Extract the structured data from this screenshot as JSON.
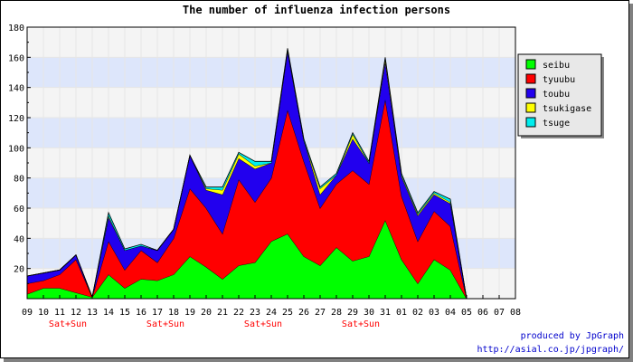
{
  "chart_data": {
    "type": "area",
    "stacked": true,
    "title": "The number of influenza infection persons",
    "categories": [
      "09",
      "10",
      "11",
      "12",
      "13",
      "14",
      "15",
      "16",
      "17",
      "18",
      "19",
      "20",
      "21",
      "22",
      "23",
      "24",
      "25",
      "26",
      "27",
      "28",
      "29",
      "30",
      "31",
      "01",
      "02",
      "03",
      "04",
      "05",
      "06",
      "07",
      "08"
    ],
    "weekend_labels": [
      {
        "index": 2.5,
        "text": "Sat+Sun"
      },
      {
        "index": 8.5,
        "text": "Sat+Sun"
      },
      {
        "index": 14.5,
        "text": "Sat+Sun"
      },
      {
        "index": 20.5,
        "text": "Sat+Sun"
      }
    ],
    "ylim": [
      0,
      180
    ],
    "yticks": [
      20,
      40,
      60,
      80,
      100,
      120,
      140,
      160,
      180
    ],
    "series": [
      {
        "name": "seibu",
        "color": "#00ff00",
        "values": [
          3,
          7,
          7,
          4,
          1,
          16,
          7,
          13,
          12,
          16,
          28,
          21,
          13,
          22,
          24,
          38,
          43,
          28,
          22,
          34,
          25,
          28,
          52,
          26,
          10,
          26,
          19,
          0,
          0,
          0,
          0
        ]
      },
      {
        "name": "tyuubu",
        "color": "#ff0000",
        "values": [
          7,
          5,
          9,
          22,
          0,
          22,
          12,
          19,
          12,
          24,
          45,
          39,
          30,
          57,
          40,
          42,
          82,
          63,
          38,
          42,
          60,
          48,
          80,
          42,
          28,
          32,
          29,
          0,
          0,
          0,
          0
        ]
      },
      {
        "name": "toubu",
        "color": "#2200ee",
        "values": [
          5,
          5,
          3,
          3,
          0,
          16,
          13,
          3,
          8,
          6,
          22,
          12,
          26,
          14,
          22,
          10,
          39,
          14,
          9,
          6,
          21,
          14,
          25,
          13,
          17,
          11,
          15,
          0,
          0,
          0,
          0
        ]
      },
      {
        "name": "tsukigase",
        "color": "#ffff00",
        "values": [
          0,
          0,
          0,
          0,
          0,
          1,
          0,
          0,
          0,
          0,
          0,
          1,
          3,
          3,
          2,
          0,
          1,
          0,
          4,
          0,
          3,
          0,
          2,
          1,
          1,
          1,
          1,
          0,
          0,
          0,
          0
        ]
      },
      {
        "name": "tsuge",
        "color": "#00eeee",
        "values": [
          0,
          0,
          0,
          0,
          0,
          2,
          1,
          1,
          0,
          0,
          0,
          1,
          2,
          1,
          3,
          1,
          1,
          1,
          1,
          1,
          1,
          1,
          1,
          1,
          1,
          1,
          2,
          0,
          0,
          0,
          0
        ]
      }
    ],
    "grid": true,
    "legend_position": "right"
  },
  "credit": {
    "line1": "produced by JpGraph",
    "line2": "http://asial.co.jp/jpgraph/"
  }
}
